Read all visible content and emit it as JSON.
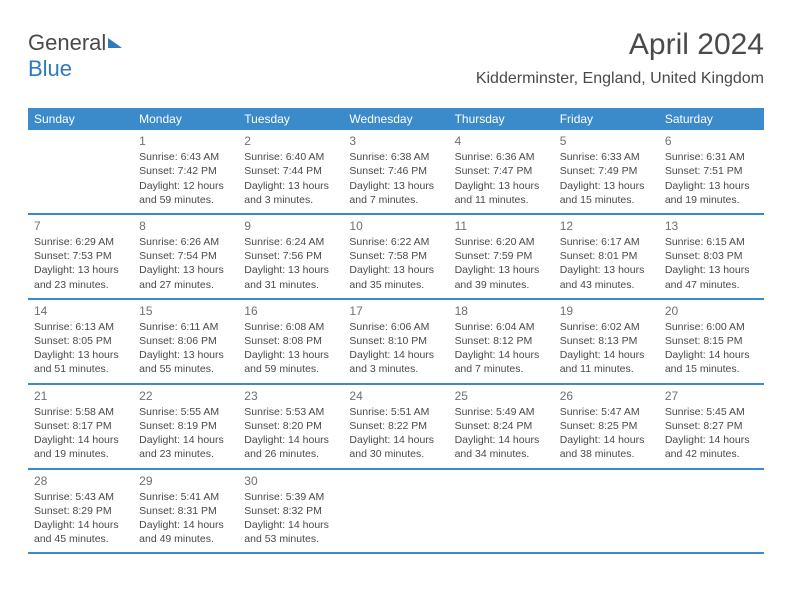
{
  "logo": {
    "text1": "General",
    "text2": "Blue"
  },
  "header": {
    "title": "April 2024",
    "location": "Kidderminster, England, United Kingdom"
  },
  "colors": {
    "header_bg": "#3b8bca",
    "header_text": "#ffffff",
    "text": "#4a4a4a",
    "daynum": "#707070",
    "rule": "#3b8bca"
  },
  "daynames": [
    "Sunday",
    "Monday",
    "Tuesday",
    "Wednesday",
    "Thursday",
    "Friday",
    "Saturday"
  ],
  "weeks": [
    [
      {
        "num": "",
        "lines": []
      },
      {
        "num": "1",
        "lines": [
          "Sunrise: 6:43 AM",
          "Sunset: 7:42 PM",
          "Daylight: 12 hours",
          "and 59 minutes."
        ]
      },
      {
        "num": "2",
        "lines": [
          "Sunrise: 6:40 AM",
          "Sunset: 7:44 PM",
          "Daylight: 13 hours",
          "and 3 minutes."
        ]
      },
      {
        "num": "3",
        "lines": [
          "Sunrise: 6:38 AM",
          "Sunset: 7:46 PM",
          "Daylight: 13 hours",
          "and 7 minutes."
        ]
      },
      {
        "num": "4",
        "lines": [
          "Sunrise: 6:36 AM",
          "Sunset: 7:47 PM",
          "Daylight: 13 hours",
          "and 11 minutes."
        ]
      },
      {
        "num": "5",
        "lines": [
          "Sunrise: 6:33 AM",
          "Sunset: 7:49 PM",
          "Daylight: 13 hours",
          "and 15 minutes."
        ]
      },
      {
        "num": "6",
        "lines": [
          "Sunrise: 6:31 AM",
          "Sunset: 7:51 PM",
          "Daylight: 13 hours",
          "and 19 minutes."
        ]
      }
    ],
    [
      {
        "num": "7",
        "lines": [
          "Sunrise: 6:29 AM",
          "Sunset: 7:53 PM",
          "Daylight: 13 hours",
          "and 23 minutes."
        ]
      },
      {
        "num": "8",
        "lines": [
          "Sunrise: 6:26 AM",
          "Sunset: 7:54 PM",
          "Daylight: 13 hours",
          "and 27 minutes."
        ]
      },
      {
        "num": "9",
        "lines": [
          "Sunrise: 6:24 AM",
          "Sunset: 7:56 PM",
          "Daylight: 13 hours",
          "and 31 minutes."
        ]
      },
      {
        "num": "10",
        "lines": [
          "Sunrise: 6:22 AM",
          "Sunset: 7:58 PM",
          "Daylight: 13 hours",
          "and 35 minutes."
        ]
      },
      {
        "num": "11",
        "lines": [
          "Sunrise: 6:20 AM",
          "Sunset: 7:59 PM",
          "Daylight: 13 hours",
          "and 39 minutes."
        ]
      },
      {
        "num": "12",
        "lines": [
          "Sunrise: 6:17 AM",
          "Sunset: 8:01 PM",
          "Daylight: 13 hours",
          "and 43 minutes."
        ]
      },
      {
        "num": "13",
        "lines": [
          "Sunrise: 6:15 AM",
          "Sunset: 8:03 PM",
          "Daylight: 13 hours",
          "and 47 minutes."
        ]
      }
    ],
    [
      {
        "num": "14",
        "lines": [
          "Sunrise: 6:13 AM",
          "Sunset: 8:05 PM",
          "Daylight: 13 hours",
          "and 51 minutes."
        ]
      },
      {
        "num": "15",
        "lines": [
          "Sunrise: 6:11 AM",
          "Sunset: 8:06 PM",
          "Daylight: 13 hours",
          "and 55 minutes."
        ]
      },
      {
        "num": "16",
        "lines": [
          "Sunrise: 6:08 AM",
          "Sunset: 8:08 PM",
          "Daylight: 13 hours",
          "and 59 minutes."
        ]
      },
      {
        "num": "17",
        "lines": [
          "Sunrise: 6:06 AM",
          "Sunset: 8:10 PM",
          "Daylight: 14 hours",
          "and 3 minutes."
        ]
      },
      {
        "num": "18",
        "lines": [
          "Sunrise: 6:04 AM",
          "Sunset: 8:12 PM",
          "Daylight: 14 hours",
          "and 7 minutes."
        ]
      },
      {
        "num": "19",
        "lines": [
          "Sunrise: 6:02 AM",
          "Sunset: 8:13 PM",
          "Daylight: 14 hours",
          "and 11 minutes."
        ]
      },
      {
        "num": "20",
        "lines": [
          "Sunrise: 6:00 AM",
          "Sunset: 8:15 PM",
          "Daylight: 14 hours",
          "and 15 minutes."
        ]
      }
    ],
    [
      {
        "num": "21",
        "lines": [
          "Sunrise: 5:58 AM",
          "Sunset: 8:17 PM",
          "Daylight: 14 hours",
          "and 19 minutes."
        ]
      },
      {
        "num": "22",
        "lines": [
          "Sunrise: 5:55 AM",
          "Sunset: 8:19 PM",
          "Daylight: 14 hours",
          "and 23 minutes."
        ]
      },
      {
        "num": "23",
        "lines": [
          "Sunrise: 5:53 AM",
          "Sunset: 8:20 PM",
          "Daylight: 14 hours",
          "and 26 minutes."
        ]
      },
      {
        "num": "24",
        "lines": [
          "Sunrise: 5:51 AM",
          "Sunset: 8:22 PM",
          "Daylight: 14 hours",
          "and 30 minutes."
        ]
      },
      {
        "num": "25",
        "lines": [
          "Sunrise: 5:49 AM",
          "Sunset: 8:24 PM",
          "Daylight: 14 hours",
          "and 34 minutes."
        ]
      },
      {
        "num": "26",
        "lines": [
          "Sunrise: 5:47 AM",
          "Sunset: 8:25 PM",
          "Daylight: 14 hours",
          "and 38 minutes."
        ]
      },
      {
        "num": "27",
        "lines": [
          "Sunrise: 5:45 AM",
          "Sunset: 8:27 PM",
          "Daylight: 14 hours",
          "and 42 minutes."
        ]
      }
    ],
    [
      {
        "num": "28",
        "lines": [
          "Sunrise: 5:43 AM",
          "Sunset: 8:29 PM",
          "Daylight: 14 hours",
          "and 45 minutes."
        ]
      },
      {
        "num": "29",
        "lines": [
          "Sunrise: 5:41 AM",
          "Sunset: 8:31 PM",
          "Daylight: 14 hours",
          "and 49 minutes."
        ]
      },
      {
        "num": "30",
        "lines": [
          "Sunrise: 5:39 AM",
          "Sunset: 8:32 PM",
          "Daylight: 14 hours",
          "and 53 minutes."
        ]
      },
      {
        "num": "",
        "lines": []
      },
      {
        "num": "",
        "lines": []
      },
      {
        "num": "",
        "lines": []
      },
      {
        "num": "",
        "lines": []
      }
    ]
  ]
}
